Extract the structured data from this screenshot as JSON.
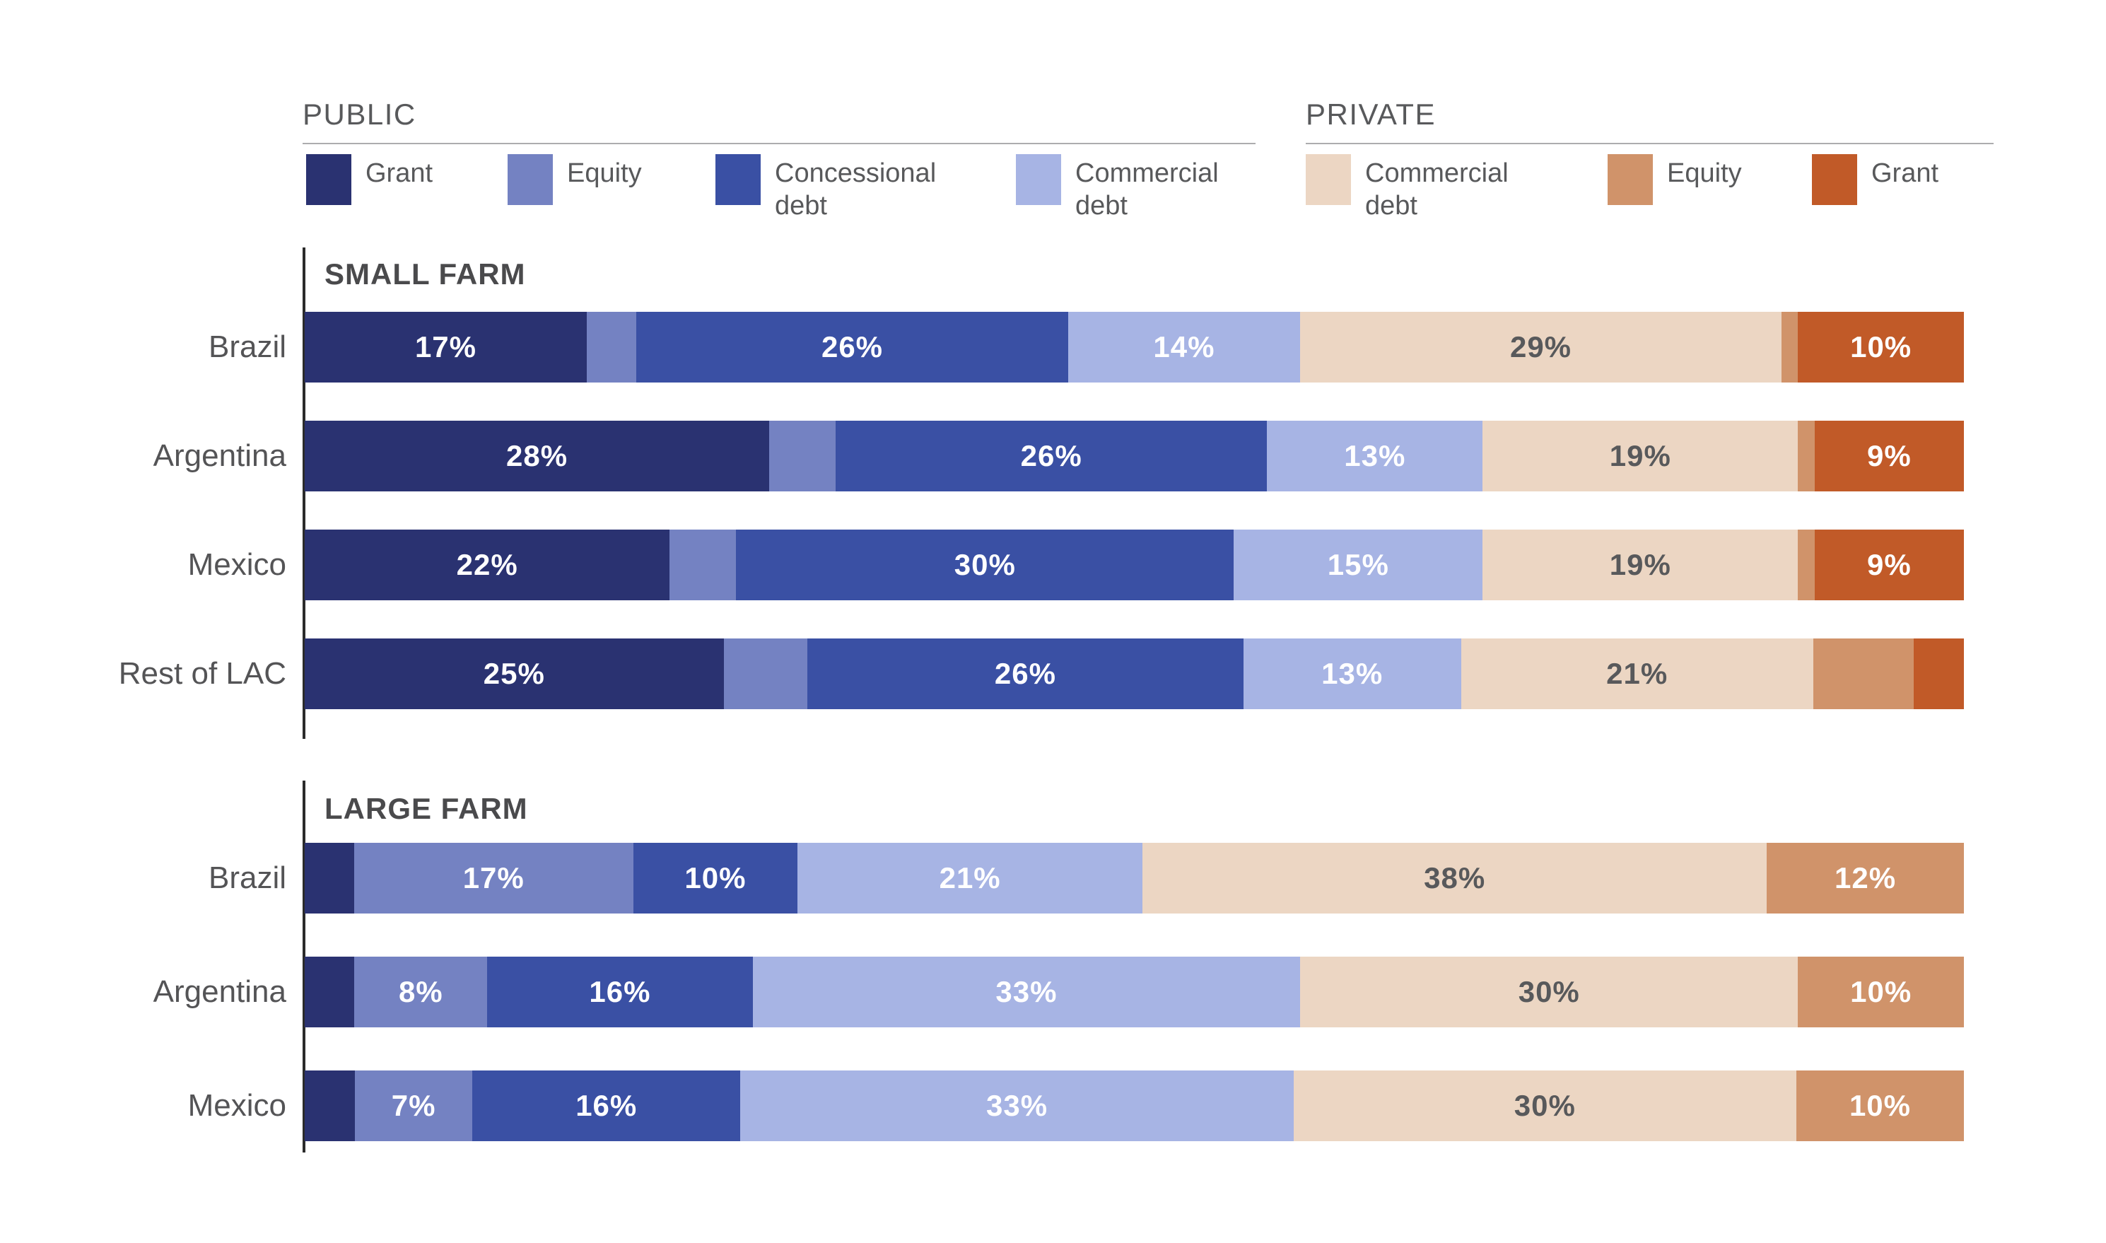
{
  "palette": {
    "public_grant": {
      "color": "#2A3271",
      "label_color": "#FFFFFF"
    },
    "public_equity": {
      "color": "#7482C2",
      "label_color": "#FFFFFF"
    },
    "concessional_debt": {
      "color": "#3A50A4",
      "label_color": "#FFFFFF"
    },
    "public_commercial_debt": {
      "color": "#A7B4E4",
      "label_color": "#FFFFFF"
    },
    "private_commercial_debt": {
      "color": "#ECD6C3",
      "label_color": "#58595B"
    },
    "private_equity": {
      "color": "#D0936A",
      "label_color": "#FFFFFF"
    },
    "private_grant": {
      "color": "#C15A28",
      "label_color": "#FFFFFF"
    }
  },
  "legend": {
    "public": {
      "title": "PUBLIC",
      "items": [
        {
          "key": "public_grant",
          "label": "Grant"
        },
        {
          "key": "public_equity",
          "label": "Equity"
        },
        {
          "key": "concessional_debt",
          "label": "Concessional debt"
        },
        {
          "key": "public_commercial_debt",
          "label": "Commercial debt"
        }
      ]
    },
    "private": {
      "title": "PRIVATE",
      "items": [
        {
          "key": "private_commercial_debt",
          "label": "Commercial debt"
        },
        {
          "key": "private_equity",
          "label": "Equity"
        },
        {
          "key": "private_grant",
          "label": "Grant"
        }
      ]
    }
  },
  "chart_data": [
    {
      "type": "bar",
      "orientation": "horizontal",
      "stacked": true,
      "title": "SMALL FARM",
      "value_format": "percent",
      "x_range": [
        0,
        100
      ],
      "grid": false,
      "categories": [
        "Brazil",
        "Argentina",
        "Mexico",
        "Rest of LAC"
      ],
      "series_order": [
        "public_grant",
        "public_equity",
        "concessional_debt",
        "public_commercial_debt",
        "private_commercial_debt",
        "private_equity",
        "private_grant"
      ],
      "rows": [
        {
          "category": "Brazil",
          "segments": [
            {
              "key": "public_grant",
              "value": 17,
              "label": "17%"
            },
            {
              "key": "public_equity",
              "value": 3,
              "label": ""
            },
            {
              "key": "concessional_debt",
              "value": 26,
              "label": "26%"
            },
            {
              "key": "public_commercial_debt",
              "value": 14,
              "label": "14%"
            },
            {
              "key": "private_commercial_debt",
              "value": 29,
              "label": "29%"
            },
            {
              "key": "private_equity",
              "value": 1,
              "label": ""
            },
            {
              "key": "private_grant",
              "value": 10,
              "label": "10%"
            }
          ]
        },
        {
          "category": "Argentina",
          "segments": [
            {
              "key": "public_grant",
              "value": 28,
              "label": "28%"
            },
            {
              "key": "public_equity",
              "value": 4,
              "label": ""
            },
            {
              "key": "concessional_debt",
              "value": 26,
              "label": "26%"
            },
            {
              "key": "public_commercial_debt",
              "value": 13,
              "label": "13%"
            },
            {
              "key": "private_commercial_debt",
              "value": 19,
              "label": "19%"
            },
            {
              "key": "private_equity",
              "value": 1,
              "label": ""
            },
            {
              "key": "private_grant",
              "value": 9,
              "label": "9%"
            }
          ]
        },
        {
          "category": "Mexico",
          "segments": [
            {
              "key": "public_grant",
              "value": 22,
              "label": "22%"
            },
            {
              "key": "public_equity",
              "value": 4,
              "label": ""
            },
            {
              "key": "concessional_debt",
              "value": 30,
              "label": "30%"
            },
            {
              "key": "public_commercial_debt",
              "value": 15,
              "label": "15%"
            },
            {
              "key": "private_commercial_debt",
              "value": 19,
              "label": "19%"
            },
            {
              "key": "private_equity",
              "value": 1,
              "label": ""
            },
            {
              "key": "private_grant",
              "value": 9,
              "label": "9%"
            }
          ]
        },
        {
          "category": "Rest of LAC",
          "segments": [
            {
              "key": "public_grant",
              "value": 25,
              "label": "25%"
            },
            {
              "key": "public_equity",
              "value": 5,
              "label": ""
            },
            {
              "key": "concessional_debt",
              "value": 26,
              "label": "26%"
            },
            {
              "key": "public_commercial_debt",
              "value": 13,
              "label": "13%"
            },
            {
              "key": "private_commercial_debt",
              "value": 21,
              "label": "21%"
            },
            {
              "key": "private_equity",
              "value": 6,
              "label": ""
            },
            {
              "key": "private_grant",
              "value": 3,
              "label": ""
            }
          ]
        }
      ]
    },
    {
      "type": "bar",
      "orientation": "horizontal",
      "stacked": true,
      "title": "LARGE FARM",
      "value_format": "percent",
      "x_range": [
        0,
        100
      ],
      "grid": false,
      "categories": [
        "Brazil",
        "Argentina",
        "Mexico"
      ],
      "series_order": [
        "public_grant",
        "public_equity",
        "concessional_debt",
        "public_commercial_debt",
        "private_commercial_debt",
        "private_equity"
      ],
      "rows": [
        {
          "category": "Brazil",
          "segments": [
            {
              "key": "public_grant",
              "value": 3,
              "label": ""
            },
            {
              "key": "public_equity",
              "value": 17,
              "label": "17%"
            },
            {
              "key": "concessional_debt",
              "value": 10,
              "label": "10%"
            },
            {
              "key": "public_commercial_debt",
              "value": 21,
              "label": "21%"
            },
            {
              "key": "private_commercial_debt",
              "value": 38,
              "label": "38%"
            },
            {
              "key": "private_equity",
              "value": 12,
              "label": "12%"
            }
          ]
        },
        {
          "category": "Argentina",
          "segments": [
            {
              "key": "public_grant",
              "value": 3,
              "label": ""
            },
            {
              "key": "public_equity",
              "value": 8,
              "label": "8%"
            },
            {
              "key": "concessional_debt",
              "value": 16,
              "label": "16%"
            },
            {
              "key": "public_commercial_debt",
              "value": 33,
              "label": "33%"
            },
            {
              "key": "private_commercial_debt",
              "value": 30,
              "label": "30%"
            },
            {
              "key": "private_equity",
              "value": 10,
              "label": "10%"
            }
          ]
        },
        {
          "category": "Mexico",
          "segments": [
            {
              "key": "public_grant",
              "value": 3,
              "label": ""
            },
            {
              "key": "public_equity",
              "value": 7,
              "label": "7%"
            },
            {
              "key": "concessional_debt",
              "value": 16,
              "label": "16%"
            },
            {
              "key": "public_commercial_debt",
              "value": 33,
              "label": "33%"
            },
            {
              "key": "private_commercial_debt",
              "value": 30,
              "label": "30%"
            },
            {
              "key": "private_equity",
              "value": 10,
              "label": "10%"
            }
          ]
        }
      ]
    }
  ]
}
